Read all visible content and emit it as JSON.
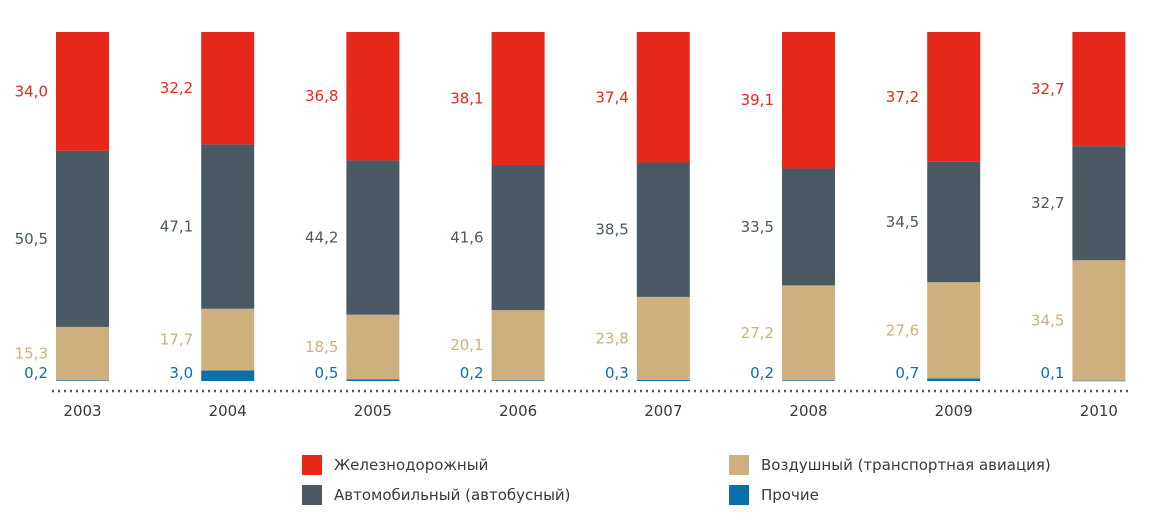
{
  "chart_data": {
    "type": "bar",
    "stacked": true,
    "normalized_percent": true,
    "categories": [
      "2003",
      "2004",
      "2005",
      "2006",
      "2007",
      "2008",
      "2009",
      "2010"
    ],
    "series": [
      {
        "name": "Прочие",
        "color": "#0a70aa",
        "values": [
          0.2,
          3.0,
          0.5,
          0.2,
          0.3,
          0.2,
          0.7,
          0.1
        ],
        "labels": [
          "0,2",
          "3,0",
          "0,5",
          "0,2",
          "0,3",
          "0,2",
          "0,7",
          "0,1"
        ]
      },
      {
        "name": "Воздушный (транспортная авиация)",
        "color": "#cdb07e",
        "values": [
          15.3,
          17.7,
          18.5,
          20.1,
          23.8,
          27.2,
          27.6,
          34.5
        ],
        "labels": [
          "15,3",
          "17,7",
          "18,5",
          "20,1",
          "23,8",
          "27,2",
          "27,6",
          "34,5"
        ]
      },
      {
        "name": "Автомобильный (автобусный)",
        "color": "#4a5963",
        "values": [
          50.5,
          47.1,
          44.2,
          41.6,
          38.5,
          33.5,
          34.5,
          32.7
        ],
        "labels": [
          "50,5",
          "47,1",
          "44,2",
          "41,6",
          "38,5",
          "33,5",
          "34,5",
          "32,7"
        ]
      },
      {
        "name": "Железнодорожный",
        "color": "#e52819",
        "values": [
          34.0,
          32.2,
          36.8,
          38.1,
          37.4,
          39.1,
          37.2,
          32.7
        ],
        "labels": [
          "34,0",
          "32,2",
          "36,8",
          "38,1",
          "37,4",
          "39,1",
          "37,2",
          "32,7"
        ]
      }
    ],
    "label_colors": {
      "Прочие": "#0a70aa",
      "Воздушный (транспортная авиация)": "#cdb07e",
      "Автомобильный (автобусный)": "#4a5963",
      "Железнодорожный": "#e52819"
    },
    "ylim": [
      0,
      100
    ],
    "grid": false,
    "legend_position": "bottom"
  },
  "legend": {
    "items": [
      {
        "label": "Железнодорожный",
        "color": "#e52819"
      },
      {
        "label": "Воздушный (транспортная авиация)",
        "color": "#cdb07e"
      },
      {
        "label": "Автомобильный (автобусный)",
        "color": "#4a5963"
      },
      {
        "label": "Прочие",
        "color": "#0a70aa"
      }
    ]
  }
}
